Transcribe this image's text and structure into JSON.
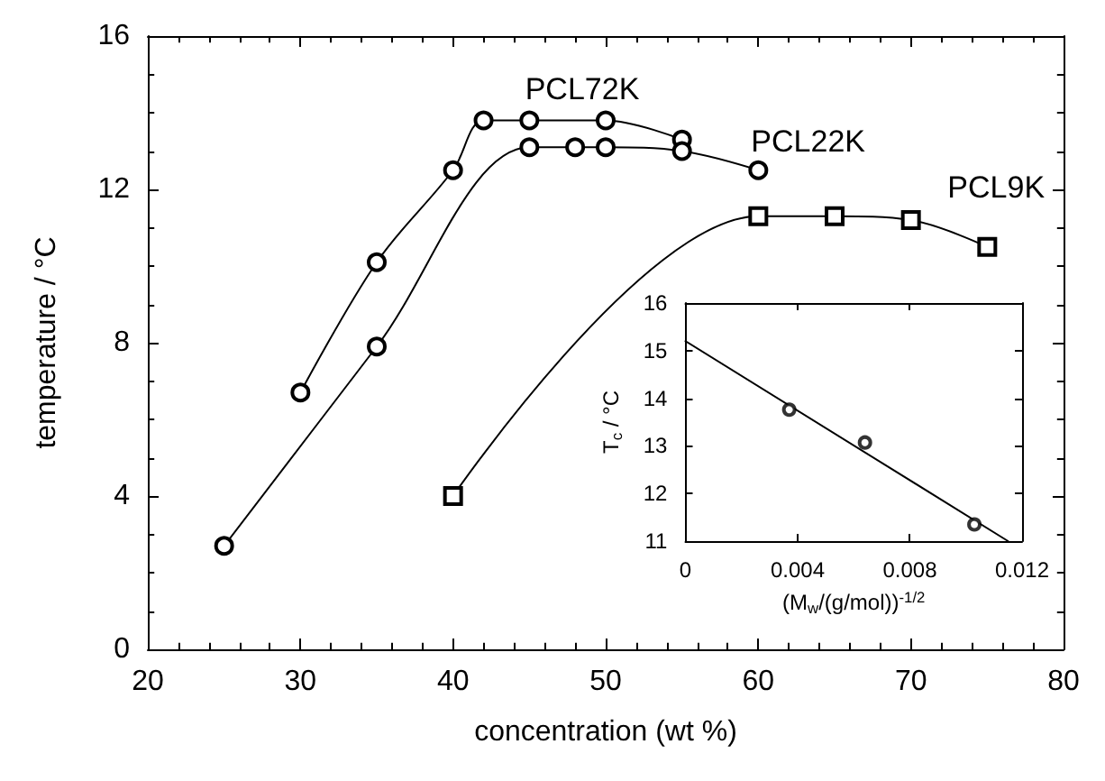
{
  "chart_data": [
    {
      "type": "line",
      "xlabel": "concentration (wt %)",
      "ylabel": "temperature / °C",
      "xlim": [
        20,
        80
      ],
      "xticks": [
        20,
        30,
        40,
        50,
        60,
        70,
        80
      ],
      "ylim": [
        0,
        16
      ],
      "yticks": [
        0,
        4,
        8,
        12,
        16
      ],
      "grid": false,
      "legend": "top right",
      "line_style": "solid",
      "series": [
        {
          "name": "PCL72K",
          "color": "#000000",
          "marker": "circle",
          "x": [
            30,
            35,
            40,
            42,
            45,
            50,
            55
          ],
          "values": [
            6.7,
            10.1,
            12.5,
            13.8,
            13.8,
            13.8,
            13.3
          ]
        },
        {
          "name": "PCL22K",
          "color": "#000000",
          "marker": "circle",
          "x": [
            25,
            35,
            45,
            48,
            50,
            55,
            60
          ],
          "values": [
            2.7,
            7.9,
            13.1,
            13.1,
            13.1,
            13.0,
            12.5
          ]
        },
        {
          "name": "PCL9K",
          "color": "#000000",
          "marker": "square",
          "x": [
            40,
            60,
            65,
            70,
            75
          ],
          "values": [
            4.0,
            11.3,
            11.3,
            11.2,
            10.5
          ]
        }
      ]
    },
    {
      "type": "scatter",
      "xlabel": "(M$_{w}$/(g/mol))$^{-1/2}$",
      "ylabel": "T$_{c}$ / °C",
      "xlim": [
        0,
        0.012
      ],
      "xticks": [
        0,
        0.004,
        0.008,
        0.012
      ],
      "ylim": [
        11,
        16
      ],
      "yticks": [
        11,
        12,
        13,
        14,
        15,
        16
      ],
      "grid": false,
      "series": [
        {
          "color": "#000000",
          "marker": "circle",
          "x": [
            0.0037,
            0.0064,
            0.0103
          ],
          "values": [
            13.76,
            13.07,
            11.35
          ]
        },
        {
          "type": "line",
          "color": "#000000",
          "marker": "none",
          "line_style": "solid",
          "x": [
            0,
            0.0115
          ],
          "values": [
            15.2,
            11.0
          ]
        }
      ]
    }
  ]
}
